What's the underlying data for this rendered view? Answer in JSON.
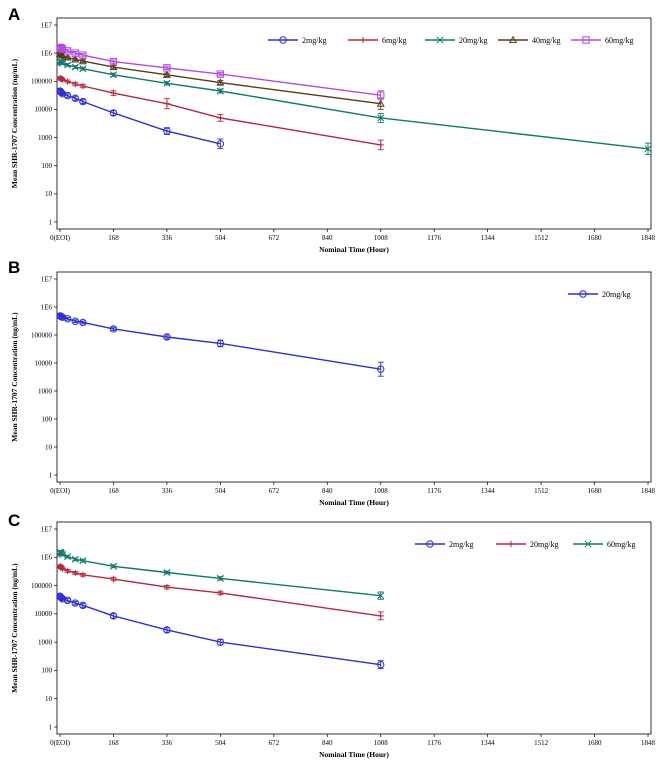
{
  "chart_data": [
    {
      "panel": "A",
      "type": "line",
      "xlabel": "Nominal Time (Hour)",
      "ylabel": "Mean SHR-1707 Concentration (ng/mL)",
      "yscale": "log",
      "xlim": [
        0,
        1848
      ],
      "ylim": [
        1,
        10000000
      ],
      "x_ticks": [
        0,
        168,
        336,
        504,
        672,
        840,
        1008,
        1176,
        1344,
        1512,
        1680,
        1848
      ],
      "x_tick_labels": [
        "0(EOI)",
        "168",
        "336",
        "504",
        "672",
        "840",
        "1008",
        "1176",
        "1344",
        "1512",
        "1680",
        "1848"
      ],
      "y_ticks": [
        1,
        10,
        100,
        1000,
        10000,
        100000,
        1000000,
        10000000
      ],
      "y_tick_labels": [
        "1",
        "10",
        "100",
        "1000",
        "10000",
        "100000",
        "1E6",
        "1E7"
      ],
      "legend_position": "top-right",
      "series": [
        {
          "name": "2mg/kg",
          "color": "#2f2fd0",
          "marker": "circle",
          "x": [
            0,
            2,
            4,
            8,
            24,
            48,
            72,
            168,
            336,
            504
          ],
          "y": [
            45000,
            43000,
            40000,
            36000,
            31000,
            25000,
            19000,
            7500,
            1700,
            600
          ],
          "err": [
            0.05,
            0.05,
            0.05,
            0.06,
            0.06,
            0.07,
            0.07,
            0.08,
            0.12,
            0.17
          ]
        },
        {
          "name": "6mg/kg",
          "color": "#b22a40",
          "marker": "plus",
          "x": [
            0,
            2,
            4,
            8,
            24,
            48,
            72,
            168,
            336,
            504,
            1008
          ],
          "y": [
            130000,
            125000,
            122000,
            115000,
            98000,
            80000,
            68000,
            38000,
            16000,
            5000,
            550
          ],
          "err": [
            0.05,
            0.05,
            0.05,
            0.05,
            0.05,
            0.06,
            0.06,
            0.08,
            0.18,
            0.12,
            0.17
          ]
        },
        {
          "name": "20mg/kg",
          "color": "#117a6a",
          "marker": "x",
          "x": [
            0,
            2,
            4,
            8,
            24,
            48,
            72,
            168,
            336,
            504,
            1008,
            1848
          ],
          "y": [
            520000,
            500000,
            470000,
            440000,
            380000,
            320000,
            280000,
            170000,
            85000,
            45000,
            5000,
            400
          ],
          "err": [
            0.05,
            0.05,
            0.05,
            0.05,
            0.05,
            0.05,
            0.05,
            0.06,
            0.06,
            0.07,
            0.16,
            0.2
          ]
        },
        {
          "name": "40mg/kg",
          "color": "#5a3a1a",
          "marker": "triangle",
          "x": [
            0,
            2,
            4,
            8,
            24,
            48,
            72,
            168,
            336,
            504,
            1008
          ],
          "y": [
            950000,
            920000,
            880000,
            820000,
            700000,
            600000,
            520000,
            320000,
            170000,
            90000,
            16000
          ],
          "err": [
            0.05,
            0.05,
            0.05,
            0.05,
            0.05,
            0.05,
            0.05,
            0.06,
            0.06,
            0.07,
            0.2
          ]
        },
        {
          "name": "60mg/kg",
          "color": "#b24be0",
          "marker": "square",
          "x": [
            0,
            2,
            4,
            8,
            24,
            48,
            72,
            168,
            336,
            504,
            1008
          ],
          "y": [
            1600000,
            1550000,
            1500000,
            1400000,
            1200000,
            1000000,
            850000,
            500000,
            300000,
            180000,
            32000
          ],
          "err": [
            0.06,
            0.06,
            0.06,
            0.06,
            0.06,
            0.06,
            0.06,
            0.06,
            0.06,
            0.06,
            0.16
          ]
        }
      ]
    },
    {
      "panel": "B",
      "type": "line",
      "xlabel": "Nominal Time (Hour)",
      "ylabel": "Mean SHR-1707 Concentration (ng/mL)",
      "yscale": "log",
      "xlim": [
        0,
        1848
      ],
      "ylim": [
        1,
        10000000
      ],
      "x_ticks": [
        0,
        168,
        336,
        504,
        672,
        840,
        1008,
        1176,
        1344,
        1512,
        1680,
        1848
      ],
      "x_tick_labels": [
        "0(EOI)",
        "168",
        "336",
        "504",
        "672",
        "840",
        "1008",
        "1176",
        "1344",
        "1512",
        "1680",
        "1848"
      ],
      "y_ticks": [
        1,
        10,
        100,
        1000,
        10000,
        100000,
        1000000,
        10000000
      ],
      "y_tick_labels": [
        "1",
        "10",
        "100",
        "1000",
        "10000",
        "100000",
        "1E6",
        "1E7"
      ],
      "legend_position": "top-right",
      "series": [
        {
          "name": "20mg/kg",
          "color": "#2f2fd0",
          "marker": "circle",
          "x": [
            0,
            2,
            4,
            8,
            24,
            48,
            72,
            168,
            336,
            504,
            1008
          ],
          "y": [
            480000,
            470000,
            450000,
            430000,
            380000,
            310000,
            280000,
            165000,
            85000,
            50000,
            6000
          ],
          "err": [
            0.05,
            0.05,
            0.05,
            0.05,
            0.05,
            0.05,
            0.05,
            0.06,
            0.07,
            0.12,
            0.25
          ]
        }
      ]
    },
    {
      "panel": "C",
      "type": "line",
      "xlabel": "Nominal Time (Hour)",
      "ylabel": "Mean SHR-1707 Concentration (ng/mL)",
      "yscale": "log",
      "xlim": [
        0,
        1848
      ],
      "ylim": [
        1,
        10000000
      ],
      "x_ticks": [
        0,
        168,
        336,
        504,
        672,
        840,
        1008,
        1176,
        1344,
        1512,
        1680,
        1848
      ],
      "x_tick_labels": [
        "0(EOI)",
        "168",
        "336",
        "504",
        "672",
        "840",
        "1008",
        "1176",
        "1344",
        "1512",
        "1680",
        "1848"
      ],
      "y_ticks": [
        1,
        10,
        100,
        1000,
        10000,
        100000,
        1000000,
        10000000
      ],
      "y_tick_labels": [
        "1",
        "10",
        "100",
        "1000",
        "10000",
        "100000",
        "1E6",
        "1E7"
      ],
      "legend_position": "top-right",
      "series": [
        {
          "name": "2mg/kg",
          "color": "#2f2fd0",
          "marker": "circle",
          "x": [
            0,
            2,
            4,
            8,
            24,
            48,
            72,
            168,
            336,
            504,
            1008
          ],
          "y": [
            42000,
            40000,
            37000,
            34000,
            30000,
            24000,
            20000,
            8500,
            2700,
            1000,
            160
          ],
          "err": [
            0.05,
            0.05,
            0.05,
            0.05,
            0.06,
            0.06,
            0.07,
            0.08,
            0.08,
            0.1,
            0.14
          ]
        },
        {
          "name": "20mg/kg",
          "color": "#b22a40",
          "marker": "plus",
          "x": [
            0,
            2,
            4,
            8,
            24,
            48,
            72,
            168,
            336,
            504,
            1008
          ],
          "y": [
            480000,
            460000,
            440000,
            400000,
            330000,
            280000,
            240000,
            170000,
            88000,
            55000,
            8500
          ],
          "err": [
            0.05,
            0.05,
            0.05,
            0.05,
            0.05,
            0.05,
            0.05,
            0.06,
            0.06,
            0.06,
            0.14
          ]
        },
        {
          "name": "60mg/kg",
          "color": "#117a6a",
          "marker": "x",
          "x": [
            0,
            2,
            4,
            8,
            24,
            48,
            72,
            168,
            336,
            504,
            1008
          ],
          "y": [
            1550000,
            1450000,
            1380000,
            1250000,
            1050000,
            850000,
            760000,
            480000,
            290000,
            180000,
            44000
          ],
          "err": [
            0.05,
            0.05,
            0.05,
            0.05,
            0.05,
            0.05,
            0.05,
            0.05,
            0.05,
            0.06,
            0.13
          ]
        }
      ]
    }
  ]
}
